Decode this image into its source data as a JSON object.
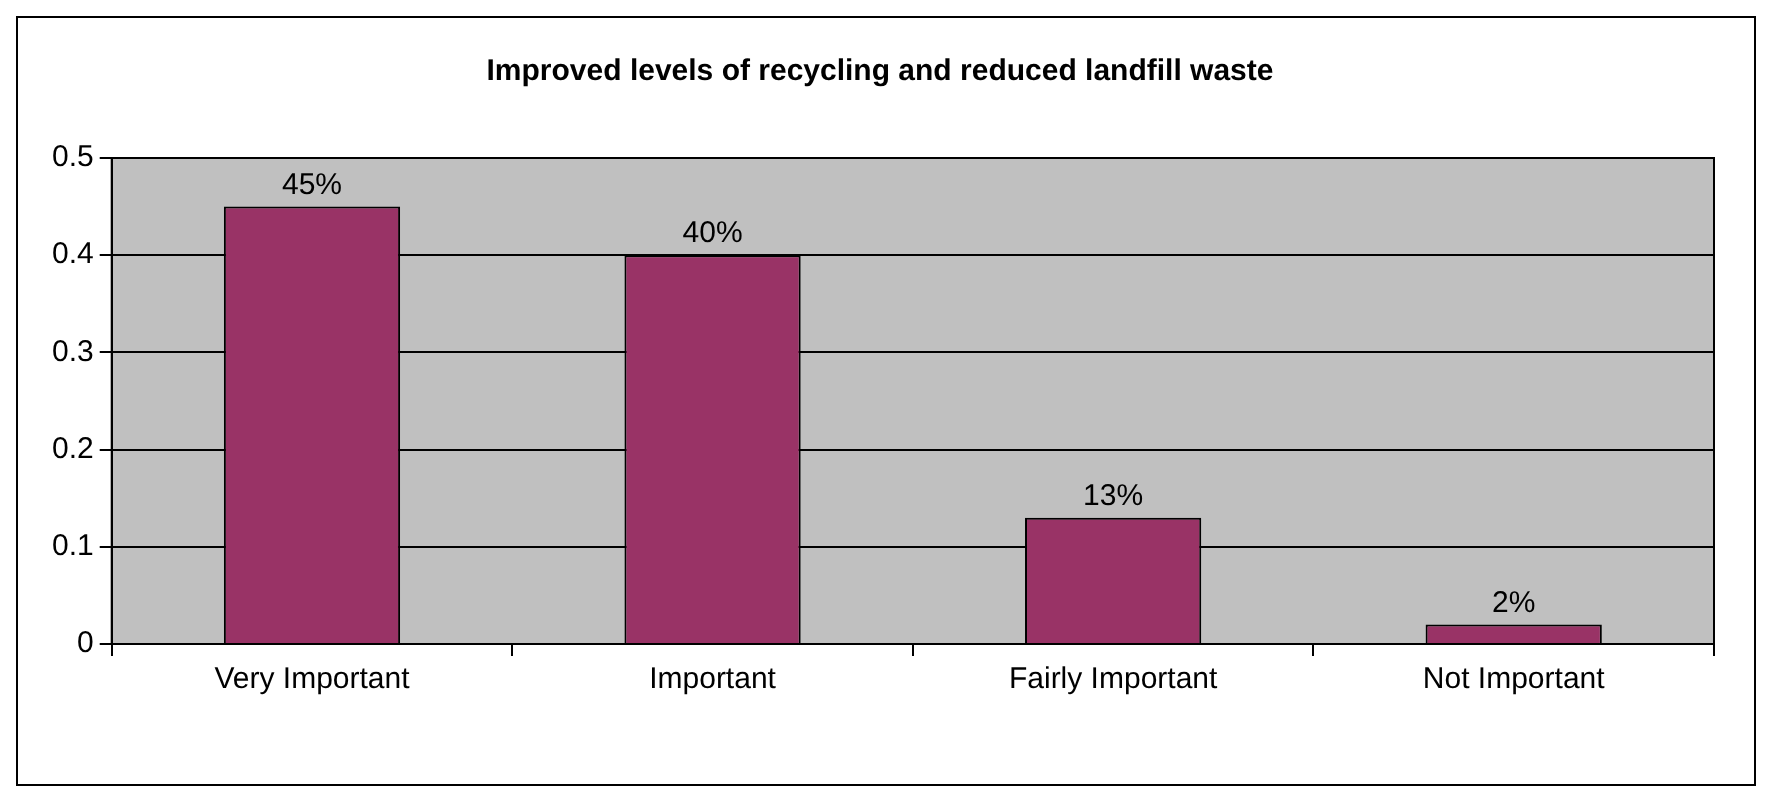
{
  "chart_data": {
    "type": "bar",
    "title": "Improved levels of recycling and reduced landfill waste",
    "categories": [
      "Very Important",
      "Important",
      "Fairly Important",
      "Not Important"
    ],
    "values": [
      0.45,
      0.4,
      0.13,
      0.02
    ],
    "value_labels": [
      "45%",
      "40%",
      "13%",
      "2%"
    ],
    "color": "#993366",
    "ylim": [
      0,
      0.5
    ],
    "yticks": [
      0,
      0.1,
      0.2,
      0.3,
      0.4,
      0.5
    ],
    "grid": "y",
    "legend": false
  }
}
